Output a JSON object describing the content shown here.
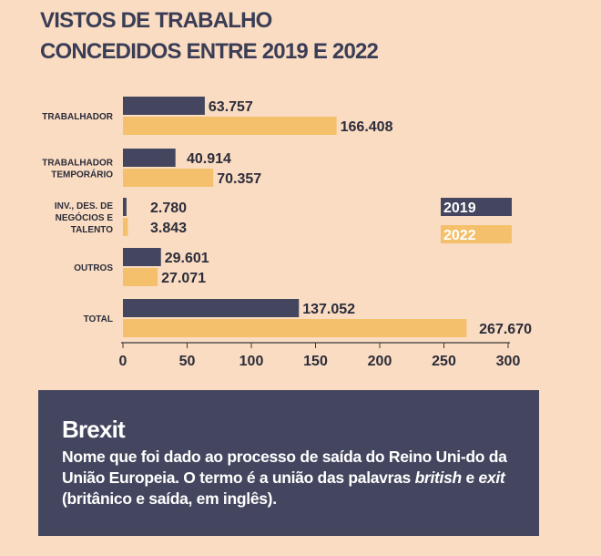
{
  "title_lines": [
    "VISTOS DE TRABALHO",
    "CONCEDIDOS ENTRE 2019 E 2022"
  ],
  "chart_data": {
    "type": "bar",
    "orientation": "horizontal",
    "categories": [
      [
        "TRABALHADOR"
      ],
      [
        "TRABALHADOR",
        "TEMPORÁRIO"
      ],
      [
        "INV., DES. DE",
        "NEGÓCIOS E",
        "TALENTO"
      ],
      [
        "OUTROS"
      ],
      [
        "TOTAL"
      ]
    ],
    "series": [
      {
        "name": "2019",
        "values": [
          63.757,
          40.914,
          2.78,
          29.601,
          137.052
        ],
        "labels": [
          "63.757",
          "40.914",
          "2.780",
          "29.601",
          "137.052"
        ],
        "color": "#43465e"
      },
      {
        "name": "2022",
        "values": [
          166.408,
          70.357,
          3.843,
          27.071,
          267.67
        ],
        "labels": [
          "166.408",
          "70.357",
          "3.843",
          "27.071",
          "267.670"
        ],
        "color": "#f5c06b"
      }
    ],
    "xlim": [
      0,
      300
    ],
    "xticks": [
      "0",
      "50",
      "100",
      "150",
      "200",
      "250",
      "300"
    ],
    "legend_position": "right"
  },
  "note": {
    "heading": "Brexit",
    "text_1": "Nome que foi dado ao processo de saída do Reino Uni-do da União Europeia. O termo é a união das palavras ",
    "word_1": "british",
    "text_2": " e ",
    "word_2": "exit",
    "text_3": " (britânico e saída, em inglês)."
  }
}
